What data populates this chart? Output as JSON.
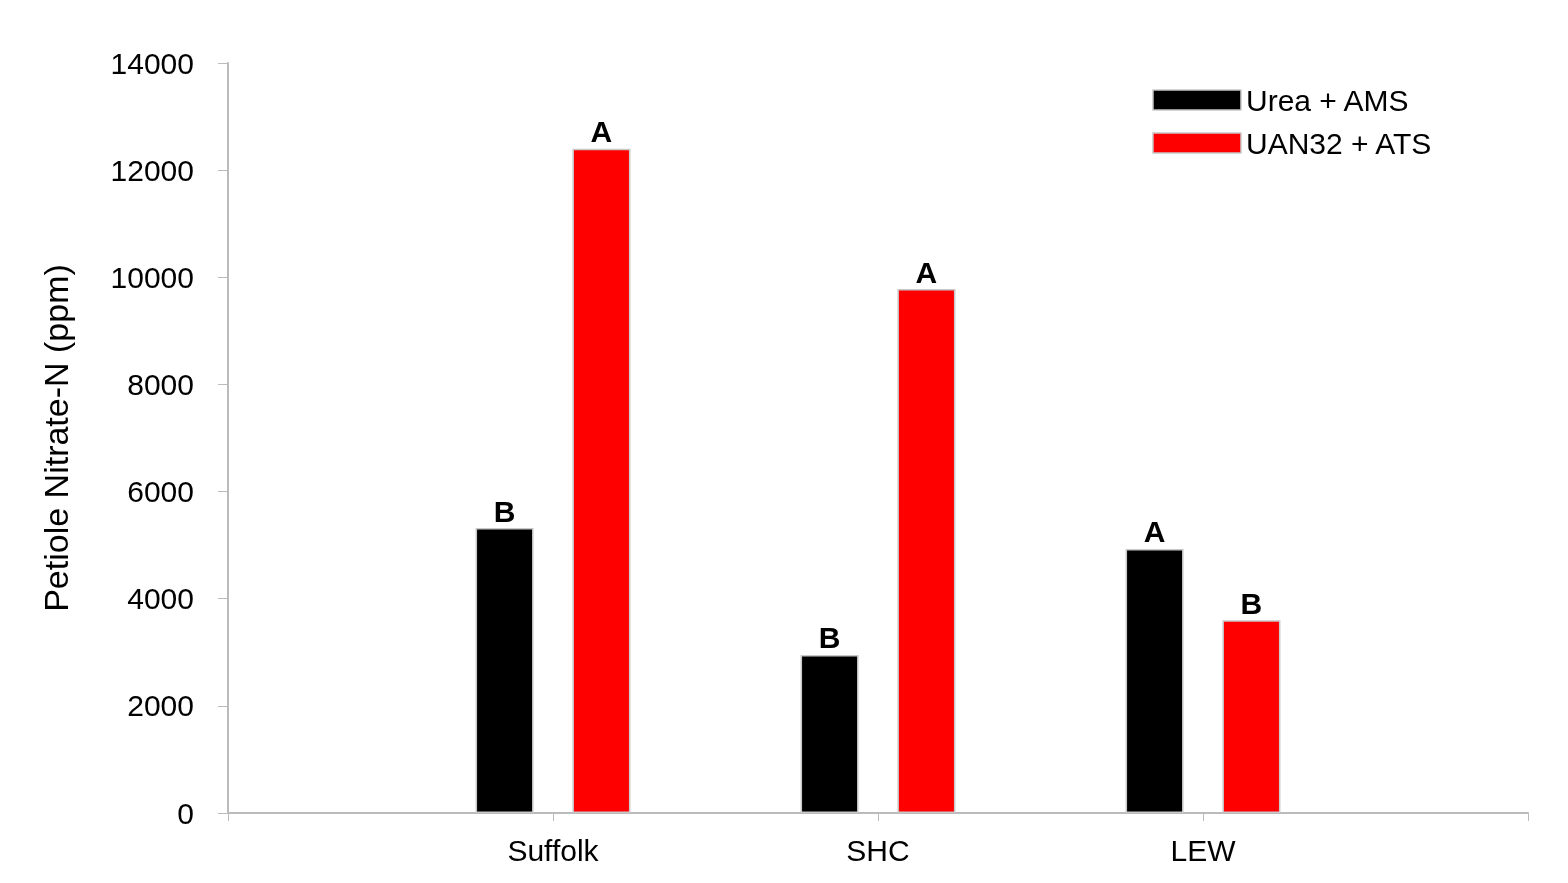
{
  "chart_data": {
    "type": "bar",
    "ylabel": "Petiole Nitrate-N (ppm)",
    "categories": [
      "Suffolk",
      "SHC",
      "LEW"
    ],
    "series": [
      {
        "name": "Urea + AMS",
        "color": "#000000",
        "values": [
          5320,
          2950,
          4930
        ],
        "value_labels": [
          "B",
          "B",
          "A"
        ]
      },
      {
        "name": "UAN32 + ATS",
        "color": "#ff0000",
        "values": [
          12400,
          9780,
          3600
        ],
        "value_labels": [
          "A",
          "A",
          "B"
        ]
      }
    ],
    "ylim": [
      0,
      14000
    ],
    "yticks": [
      0,
      2000,
      4000,
      6000,
      8000,
      10000,
      12000,
      14000
    ],
    "grid": false,
    "legend": "top right"
  }
}
